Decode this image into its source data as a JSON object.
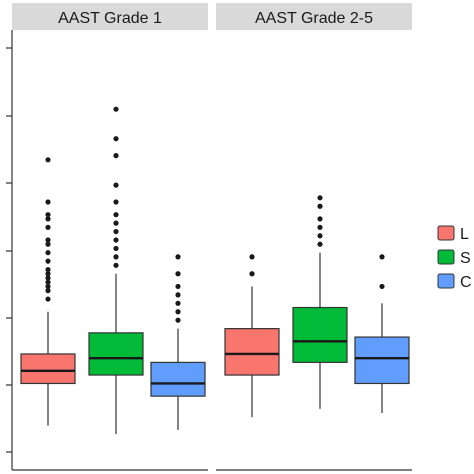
{
  "chart_data": {
    "type": "boxplot",
    "facets": [
      "AAST Grade 1",
      "AAST Grade 2-5"
    ],
    "legend": {
      "placement": "right",
      "labels": [
        "L",
        "S",
        "C"
      ],
      "colors": [
        "#f8766d",
        "#00ba38",
        "#619cff"
      ]
    },
    "y_ticks_visible": 6,
    "grid": false,
    "boxes": [
      {
        "facet": 0,
        "group": 0,
        "q1": 1.6,
        "median": 1.9,
        "q3": 2.3,
        "whisker_low": 0.6,
        "whisker_high": 3.3,
        "outliers": [
          3.6,
          3.8,
          3.9,
          4.0,
          4.1,
          4.2,
          4.3,
          4.5,
          4.7,
          4.9,
          5.0,
          5.3,
          5.5,
          5.6,
          5.9,
          6.9
        ]
      },
      {
        "facet": 0,
        "group": 1,
        "q1": 1.8,
        "median": 2.2,
        "q3": 2.8,
        "whisker_low": 0.4,
        "whisker_high": 4.2,
        "outliers": [
          4.4,
          4.6,
          4.8,
          5.0,
          5.2,
          5.4,
          5.6,
          5.9,
          6.3,
          7.0,
          7.4,
          8.1
        ]
      },
      {
        "facet": 0,
        "group": 2,
        "q1": 1.3,
        "median": 1.6,
        "q3": 2.1,
        "whisker_low": 0.5,
        "whisker_high": 2.9,
        "outliers": [
          3.1,
          3.3,
          3.5,
          3.7,
          3.9,
          4.2,
          4.6
        ]
      },
      {
        "facet": 1,
        "group": 0,
        "q1": 1.8,
        "median": 2.3,
        "q3": 2.9,
        "whisker_low": 0.8,
        "whisker_high": 3.9,
        "outliers": [
          4.2,
          4.6
        ]
      },
      {
        "facet": 1,
        "group": 1,
        "q1": 2.1,
        "median": 2.6,
        "q3": 3.4,
        "whisker_low": 1.0,
        "whisker_high": 4.7,
        "outliers": [
          4.9,
          5.1,
          5.3,
          5.5,
          5.8,
          6.0
        ]
      },
      {
        "facet": 1,
        "group": 2,
        "q1": 1.6,
        "median": 2.2,
        "q3": 2.7,
        "whisker_low": 0.9,
        "whisker_high": 3.5,
        "outliers": [
          3.9,
          4.6
        ]
      }
    ]
  }
}
